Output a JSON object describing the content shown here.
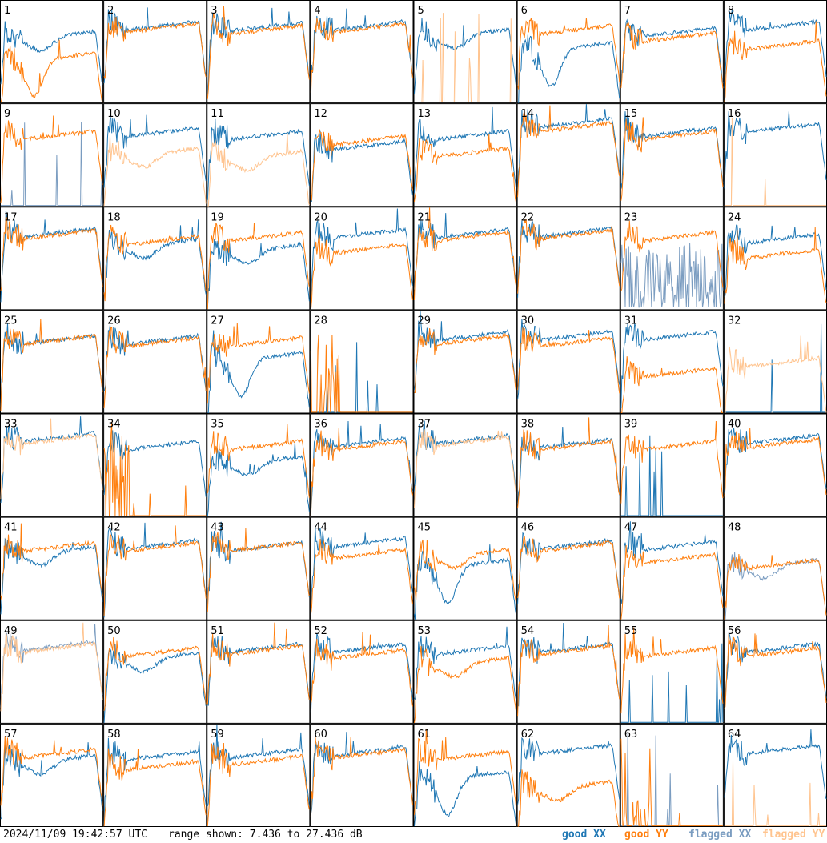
{
  "timestamp": "2024/11/09 19:42:57 UTC",
  "range_text": "range shown: 7.436 to 27.436 dB",
  "legend": [
    {
      "label": "good XX",
      "color": "#1f77b4"
    },
    {
      "label": "good YY",
      "color": "#ff7f0e"
    },
    {
      "label": "flagged XX",
      "color": "#7a9cc0"
    },
    {
      "label": "flagged YY",
      "color": "#ffc48f"
    }
  ],
  "chart_data": {
    "type": "line",
    "title": "",
    "ylabel": "dB",
    "ylim": [
      7.436,
      27.436
    ],
    "x": "channel",
    "panels": [
      {
        "id": "1",
        "xx": "good",
        "yy": "good",
        "profile_xx": "dip",
        "profile_yy": "deepdip",
        "level_xx": 0.56,
        "level_yy": 0.35
      },
      {
        "id": "2",
        "xx": "good",
        "yy": "good",
        "profile_xx": "std",
        "profile_yy": "std",
        "level_xx": 0.66,
        "level_yy": 0.64
      },
      {
        "id": "3",
        "xx": "good",
        "yy": "good",
        "profile_xx": "std",
        "profile_yy": "std",
        "level_xx": 0.65,
        "level_yy": 0.62
      },
      {
        "id": "4",
        "xx": "good",
        "yy": "good",
        "profile_xx": "std",
        "profile_yy": "std",
        "level_xx": 0.66,
        "level_yy": 0.64
      },
      {
        "id": "5",
        "xx": "good",
        "yy": "flagged",
        "profile_xx": "dip",
        "profile_yy": "flat",
        "level_xx": 0.58,
        "level_yy": 0.0
      },
      {
        "id": "6",
        "xx": "good",
        "yy": "good",
        "profile_xx": "deepdip",
        "profile_yy": "std",
        "level_xx": 0.45,
        "level_yy": 0.62
      },
      {
        "id": "7",
        "xx": "good",
        "yy": "good",
        "profile_xx": "std",
        "profile_yy": "std",
        "level_xx": 0.6,
        "level_yy": 0.55
      },
      {
        "id": "8",
        "xx": "good",
        "yy": "good",
        "profile_xx": "std",
        "profile_yy": "std",
        "level_xx": 0.66,
        "level_yy": 0.47
      },
      {
        "id": "9",
        "xx": "flagged",
        "yy": "good",
        "profile_xx": "flat",
        "profile_yy": "std",
        "level_xx": 0.0,
        "level_yy": 0.6
      },
      {
        "id": "10",
        "xx": "good",
        "yy": "flagged",
        "profile_xx": "std",
        "profile_yy": "dip",
        "level_xx": 0.63,
        "level_yy": 0.43
      },
      {
        "id": "11",
        "xx": "good",
        "yy": "flagged",
        "profile_xx": "std",
        "profile_yy": "dip",
        "level_xx": 0.6,
        "level_yy": 0.4
      },
      {
        "id": "12",
        "xx": "good",
        "yy": "good",
        "profile_xx": "std",
        "profile_yy": "std",
        "level_xx": 0.5,
        "level_yy": 0.55
      },
      {
        "id": "13",
        "xx": "good",
        "yy": "good",
        "profile_xx": "std",
        "profile_yy": "std",
        "level_xx": 0.6,
        "level_yy": 0.43
      },
      {
        "id": "14",
        "xx": "good",
        "yy": "good",
        "profile_xx": "std",
        "profile_yy": "std",
        "level_xx": 0.72,
        "level_yy": 0.68
      },
      {
        "id": "15",
        "xx": "good",
        "yy": "good",
        "profile_xx": "std",
        "profile_yy": "std",
        "level_xx": 0.63,
        "level_yy": 0.6
      },
      {
        "id": "16",
        "xx": "good",
        "yy": "flagged",
        "profile_xx": "std",
        "profile_yy": "flat",
        "level_xx": 0.67,
        "level_yy": 0.0
      },
      {
        "id": "17",
        "xx": "good",
        "yy": "good",
        "profile_xx": "std",
        "profile_yy": "std",
        "level_xx": 0.66,
        "level_yy": 0.64
      },
      {
        "id": "18",
        "xx": "good",
        "yy": "good",
        "profile_xx": "dip",
        "profile_yy": "std",
        "level_xx": 0.55,
        "level_yy": 0.58
      },
      {
        "id": "19",
        "xx": "good",
        "yy": "good",
        "profile_xx": "dip",
        "profile_yy": "std",
        "level_xx": 0.5,
        "level_yy": 0.62
      },
      {
        "id": "20",
        "xx": "good",
        "yy": "good",
        "profile_xx": "std",
        "profile_yy": "std",
        "level_xx": 0.65,
        "level_yy": 0.5
      },
      {
        "id": "21",
        "xx": "good",
        "yy": "good",
        "profile_xx": "std",
        "profile_yy": "std",
        "level_xx": 0.65,
        "level_yy": 0.62
      },
      {
        "id": "22",
        "xx": "good",
        "yy": "good",
        "profile_xx": "std",
        "profile_yy": "std",
        "level_xx": 0.66,
        "level_yy": 0.64
      },
      {
        "id": "23",
        "xx": "flagged",
        "yy": "good",
        "profile_xx": "noisy",
        "profile_yy": "std",
        "level_xx": 0.35,
        "level_yy": 0.62
      },
      {
        "id": "24",
        "xx": "good",
        "yy": "good",
        "profile_xx": "std",
        "profile_yy": "std",
        "level_xx": 0.6,
        "level_yy": 0.45
      },
      {
        "id": "25",
        "xx": "good",
        "yy": "good",
        "profile_xx": "std",
        "profile_yy": "std",
        "level_xx": 0.62,
        "level_yy": 0.62
      },
      {
        "id": "26",
        "xx": "good",
        "yy": "good",
        "profile_xx": "std",
        "profile_yy": "std",
        "level_xx": 0.62,
        "level_yy": 0.6
      },
      {
        "id": "27",
        "xx": "good",
        "yy": "good",
        "profile_xx": "deepdip",
        "profile_yy": "std",
        "level_xx": 0.45,
        "level_yy": 0.6
      },
      {
        "id": "28",
        "xx": "good",
        "yy": "good",
        "profile_xx": "flat",
        "profile_yy": "spiky",
        "level_xx": 0.0,
        "level_yy": 0.4
      },
      {
        "id": "29",
        "xx": "good",
        "yy": "good",
        "profile_xx": "std",
        "profile_yy": "std",
        "level_xx": 0.66,
        "level_yy": 0.62
      },
      {
        "id": "30",
        "xx": "good",
        "yy": "good",
        "profile_xx": "std",
        "profile_yy": "std",
        "level_xx": 0.66,
        "level_yy": 0.6
      },
      {
        "id": "31",
        "xx": "good",
        "yy": "good",
        "profile_xx": "std",
        "profile_yy": "std",
        "level_xx": 0.66,
        "level_yy": 0.3
      },
      {
        "id": "32",
        "xx": "good",
        "yy": "flagged",
        "profile_xx": "flat",
        "profile_yy": "std",
        "level_xx": 0.0,
        "level_yy": 0.4
      },
      {
        "id": "33",
        "xx": "good",
        "yy": "flagged",
        "profile_xx": "std",
        "profile_yy": "std",
        "level_xx": 0.68,
        "level_yy": 0.66
      },
      {
        "id": "34",
        "xx": "good",
        "yy": "good",
        "profile_xx": "std",
        "profile_yy": "spiky",
        "level_xx": 0.6,
        "level_yy": 0.05
      },
      {
        "id": "35",
        "xx": "good",
        "yy": "good",
        "profile_xx": "dip",
        "profile_yy": "std",
        "level_xx": 0.45,
        "level_yy": 0.6
      },
      {
        "id": "36",
        "xx": "good",
        "yy": "good",
        "profile_xx": "std",
        "profile_yy": "std",
        "level_xx": 0.63,
        "level_yy": 0.6
      },
      {
        "id": "37",
        "xx": "good",
        "yy": "flagged",
        "profile_xx": "std",
        "profile_yy": "std",
        "level_xx": 0.66,
        "level_yy": 0.64
      },
      {
        "id": "38",
        "xx": "good",
        "yy": "good",
        "profile_xx": "std",
        "profile_yy": "std",
        "level_xx": 0.62,
        "level_yy": 0.6
      },
      {
        "id": "39",
        "xx": "good",
        "yy": "good",
        "profile_xx": "flat",
        "profile_yy": "std",
        "level_xx": 0.0,
        "level_yy": 0.6
      },
      {
        "id": "40",
        "xx": "good",
        "yy": "good",
        "profile_xx": "std",
        "profile_yy": "std",
        "level_xx": 0.66,
        "level_yy": 0.62
      },
      {
        "id": "41",
        "xx": "good",
        "yy": "good",
        "profile_xx": "dip",
        "profile_yy": "std",
        "level_xx": 0.58,
        "level_yy": 0.62
      },
      {
        "id": "42",
        "xx": "good",
        "yy": "good",
        "profile_xx": "std",
        "profile_yy": "std",
        "level_xx": 0.64,
        "level_yy": 0.62
      },
      {
        "id": "43",
        "xx": "good",
        "yy": "good",
        "profile_xx": "std",
        "profile_yy": "std",
        "level_xx": 0.62,
        "level_yy": 0.62
      },
      {
        "id": "44",
        "xx": "good",
        "yy": "good",
        "profile_xx": "std",
        "profile_yy": "std",
        "level_xx": 0.66,
        "level_yy": 0.55
      },
      {
        "id": "45",
        "xx": "good",
        "yy": "good",
        "profile_xx": "deepdip",
        "profile_yy": "dip",
        "level_xx": 0.45,
        "level_yy": 0.55
      },
      {
        "id": "46",
        "xx": "good",
        "yy": "good",
        "profile_xx": "std",
        "profile_yy": "std",
        "level_xx": 0.64,
        "level_yy": 0.62
      },
      {
        "id": "47",
        "xx": "good",
        "yy": "good",
        "profile_xx": "std",
        "profile_yy": "std",
        "level_xx": 0.63,
        "level_yy": 0.5
      },
      {
        "id": "48",
        "xx": "flagged",
        "yy": "good",
        "profile_xx": "dip",
        "profile_yy": "std",
        "level_xx": 0.45,
        "level_yy": 0.45
      },
      {
        "id": "49",
        "xx": "flagged",
        "yy": "flagged",
        "profile_xx": "std",
        "profile_yy": "std",
        "level_xx": 0.66,
        "level_yy": 0.64
      },
      {
        "id": "50",
        "xx": "good",
        "yy": "good",
        "profile_xx": "dip",
        "profile_yy": "std",
        "level_xx": 0.55,
        "level_yy": 0.6
      },
      {
        "id": "51",
        "xx": "good",
        "yy": "good",
        "profile_xx": "std",
        "profile_yy": "std",
        "level_xx": 0.64,
        "level_yy": 0.62
      },
      {
        "id": "52",
        "xx": "good",
        "yy": "good",
        "profile_xx": "std",
        "profile_yy": "std",
        "level_xx": 0.64,
        "level_yy": 0.58
      },
      {
        "id": "53",
        "xx": "good",
        "yy": "good",
        "profile_xx": "std",
        "profile_yy": "dip",
        "level_xx": 0.62,
        "level_yy": 0.5
      },
      {
        "id": "54",
        "xx": "good",
        "yy": "good",
        "profile_xx": "std",
        "profile_yy": "std",
        "level_xx": 0.64,
        "level_yy": 0.62
      },
      {
        "id": "55",
        "xx": "good",
        "yy": "good",
        "profile_xx": "flat",
        "profile_yy": "std",
        "level_xx": 0.0,
        "level_yy": 0.6
      },
      {
        "id": "56",
        "xx": "good",
        "yy": "good",
        "profile_xx": "std",
        "profile_yy": "std",
        "level_xx": 0.64,
        "level_yy": 0.6
      },
      {
        "id": "57",
        "xx": "good",
        "yy": "good",
        "profile_xx": "dip",
        "profile_yy": "std",
        "level_xx": 0.56,
        "level_yy": 0.62
      },
      {
        "id": "58",
        "xx": "good",
        "yy": "good",
        "profile_xx": "std",
        "profile_yy": "std",
        "level_xx": 0.6,
        "level_yy": 0.5
      },
      {
        "id": "59",
        "xx": "good",
        "yy": "good",
        "profile_xx": "std",
        "profile_yy": "std",
        "level_xx": 0.62,
        "level_yy": 0.55
      },
      {
        "id": "60",
        "xx": "good",
        "yy": "good",
        "profile_xx": "std",
        "profile_yy": "std",
        "level_xx": 0.64,
        "level_yy": 0.62
      },
      {
        "id": "61",
        "xx": "good",
        "yy": "good",
        "profile_xx": "deepdip",
        "profile_yy": "std",
        "level_xx": 0.4,
        "level_yy": 0.6
      },
      {
        "id": "62",
        "xx": "good",
        "yy": "good",
        "profile_xx": "std",
        "profile_yy": "dip",
        "level_xx": 0.66,
        "level_yy": 0.3
      },
      {
        "id": "63",
        "xx": "flagged",
        "yy": "good",
        "profile_xx": "flat",
        "profile_yy": "spiky",
        "level_xx": 0.0,
        "level_yy": 0.3
      },
      {
        "id": "64",
        "xx": "good",
        "yy": "flagged",
        "profile_xx": "std",
        "profile_yy": "flat",
        "level_xx": 0.66,
        "level_yy": 0.0
      }
    ]
  }
}
